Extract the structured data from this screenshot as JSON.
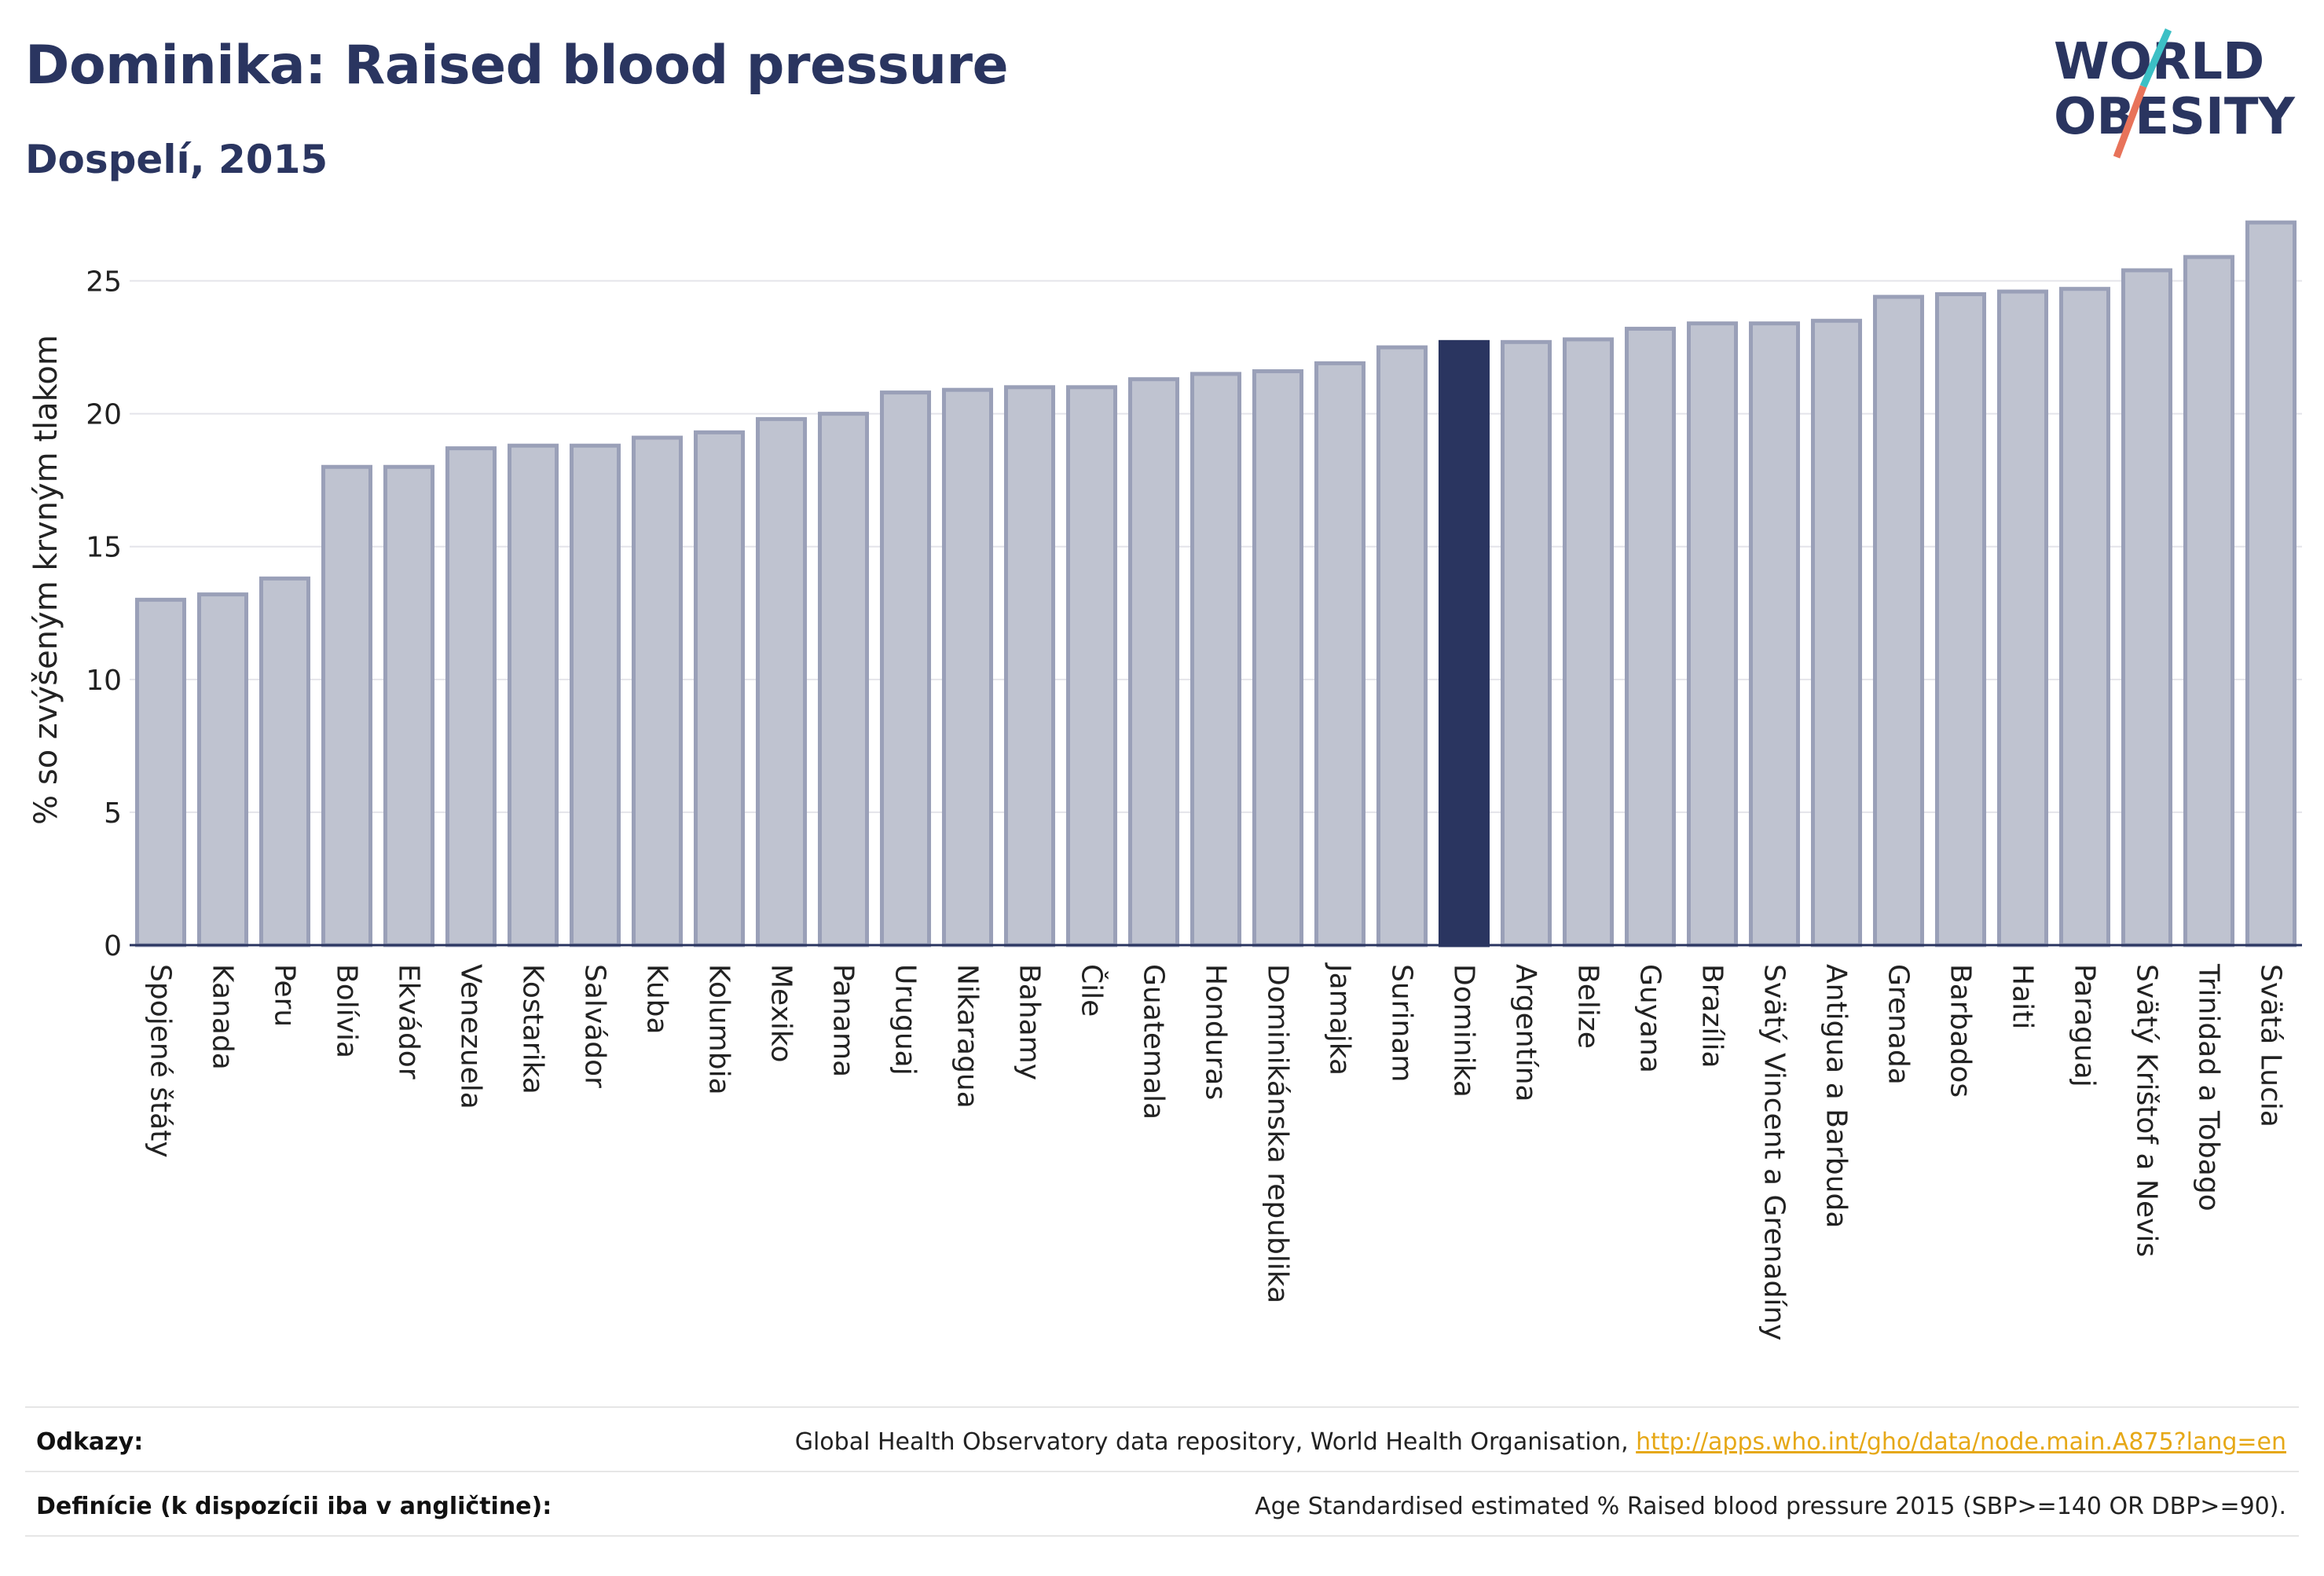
{
  "header": {
    "title": "Dominika: Raised blood pressure",
    "subtitle": "Dospelí, 2015"
  },
  "logo": {
    "line1": "WORLD",
    "line2": "OBESITY",
    "accent_color": "#e8735a",
    "accent_color2": "#3cc0c5"
  },
  "colors": {
    "bar": "#bfc3d0",
    "bar_border": "#9aa0b8",
    "highlight": "#2a3560",
    "text": "#2a3560"
  },
  "chart_data": {
    "type": "bar",
    "title": "Dominika: Raised blood pressure",
    "subtitle": "Dospelí, 2015",
    "xlabel": "",
    "ylabel": "% so zvýšeným krvným tlakom",
    "ylim": [
      0,
      27.5
    ],
    "yticks": [
      0,
      5,
      10,
      15,
      20,
      25
    ],
    "grid": true,
    "highlight": "Dominika",
    "categories": [
      "Spojené štáty",
      "Kanada",
      "Peru",
      "Bolívia",
      "Ekvádor",
      "Venezuela",
      "Kostarika",
      "Salvádor",
      "Kuba",
      "Kolumbia",
      "Mexiko",
      "Panama",
      "Uruguaj",
      "Nikaragua",
      "Bahamy",
      "Čile",
      "Guatemala",
      "Honduras",
      "Dominikánska republika",
      "Jamajka",
      "Surinam",
      "Dominika",
      "Argentína",
      "Belize",
      "Guyana",
      "Brazília",
      "Svätý Vincent a Grenadíny",
      "Antigua a Barbuda",
      "Grenada",
      "Barbados",
      "Haiti",
      "Paraguaj",
      "Svätý Krištof a Nevis",
      "Trinidad a Tobago",
      "Svätá Lucia"
    ],
    "values": [
      13.0,
      13.2,
      13.8,
      18.0,
      18.0,
      18.7,
      18.8,
      18.8,
      19.1,
      19.3,
      19.8,
      20.0,
      20.8,
      20.9,
      21.0,
      21.0,
      21.3,
      21.5,
      21.6,
      21.9,
      22.5,
      22.7,
      22.7,
      22.8,
      23.2,
      23.4,
      23.4,
      23.5,
      24.4,
      24.5,
      24.6,
      24.7,
      25.4,
      25.9,
      27.2
    ]
  },
  "footer": {
    "sources_label": "Odkazy:",
    "sources_text": "Global Health Observatory data repository, World Health Organisation, ",
    "sources_link": "http://apps.who.int/gho/data/node.main.A875?lang=en",
    "definitions_label": "Definície (k dispozícii iba v angličtine):",
    "definitions_text": "Age Standardised estimated % Raised blood pressure 2015 (SBP>=140 OR DBP>=90)."
  }
}
